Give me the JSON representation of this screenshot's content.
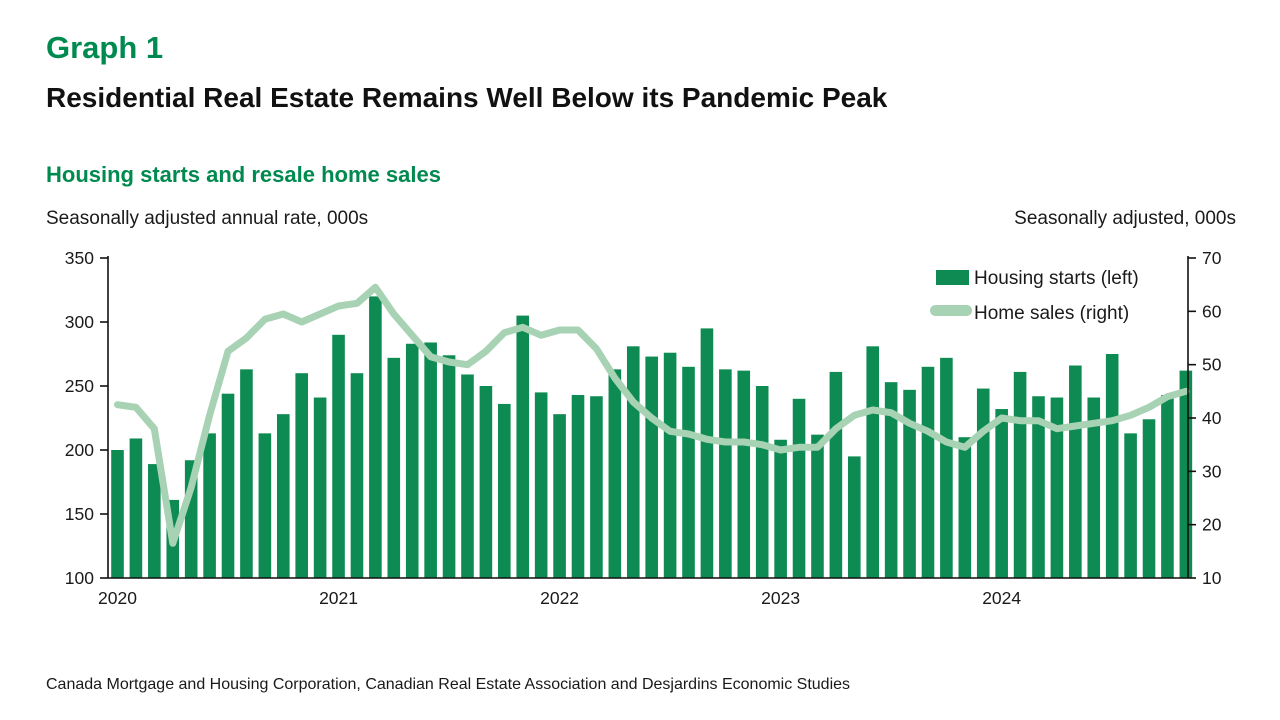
{
  "header": {
    "graph_label": "Graph 1",
    "title": "Residential Real Estate Remains Well Below its Pandemic Peak"
  },
  "chart": {
    "subtitle": "Housing starts and resale home sales",
    "left_axis_note": "Seasonally adjusted annual rate, 000s",
    "right_axis_note": "Seasonally adjusted, 000s"
  },
  "legend": [
    {
      "label": "Housing starts (left)",
      "swatch": "bar"
    },
    {
      "label": "Home sales (right)",
      "swatch": "line"
    }
  ],
  "source": "Canada Mortgage and Housing Corporation, Canadian Real Estate Association and Desjardins Economic Studies",
  "colors": {
    "accent_green": "#008a50",
    "bar_green": "#0e8b52",
    "line_green": "#a8d2b4",
    "axis_black": "#111111"
  },
  "chart_data": {
    "type": "combo",
    "frequency": "monthly",
    "x_tick_labels": [
      "2020",
      "2021",
      "2022",
      "2023",
      "2024"
    ],
    "x_tick_month_indices": [
      0,
      12,
      24,
      36,
      48
    ],
    "left_axis": {
      "min": 100,
      "max": 350,
      "step": 50
    },
    "right_axis": {
      "min": 10,
      "max": 70,
      "step": 10
    },
    "series": [
      {
        "name": "Housing starts (left)",
        "type": "bar",
        "axis": "left",
        "values": [
          200,
          209,
          189,
          161,
          192,
          213,
          244,
          263,
          213,
          228,
          260,
          241,
          290,
          260,
          320,
          272,
          283,
          284,
          274,
          259,
          250,
          236,
          305,
          245,
          228,
          243,
          242,
          263,
          281,
          273,
          276,
          265,
          295,
          263,
          262,
          250,
          208,
          240,
          212,
          261,
          195,
          281,
          253,
          247,
          265,
          272,
          210,
          248,
          232,
          261,
          242,
          241,
          266,
          241,
          275,
          213,
          224,
          243,
          262
        ]
      },
      {
        "name": "Home sales (right)",
        "type": "line",
        "axis": "right",
        "values": [
          42.5,
          42,
          38,
          16.5,
          27,
          40.5,
          52.5,
          55,
          58.5,
          59.5,
          58,
          59.5,
          61,
          61.5,
          64.5,
          59.5,
          55.5,
          51.5,
          50.5,
          50,
          52.5,
          56,
          57,
          55.5,
          56.5,
          56.5,
          53,
          47.5,
          43,
          40,
          37.5,
          37,
          36,
          35.5,
          35.5,
          35,
          34,
          34.5,
          34.5,
          38,
          40.5,
          41.5,
          41,
          39,
          37.5,
          35.5,
          34.5,
          37.5,
          40,
          39.5,
          39.5,
          38,
          38.5,
          39,
          39.5,
          40.5,
          42,
          44,
          45
        ]
      }
    ]
  }
}
